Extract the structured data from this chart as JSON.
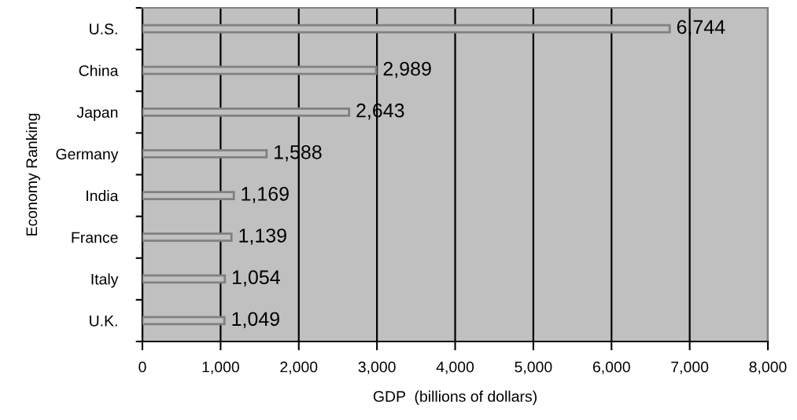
{
  "chart_data": {
    "type": "bar",
    "orientation": "horizontal",
    "ylabel": "Economy Ranking",
    "xlabel": "GDP  (billions of dollars)",
    "categories": [
      "U.S.",
      "China",
      "Japan",
      "Germany",
      "India",
      "France",
      "Italy",
      "U.K."
    ],
    "values": [
      6744,
      2989,
      2643,
      1588,
      1169,
      1139,
      1054,
      1049
    ],
    "value_labels": [
      "6,744",
      "2,989",
      "2,643",
      "1,588",
      "1,169",
      "1,139",
      "1,054",
      "1,049"
    ],
    "color": "#c0c0c0",
    "xlim": [
      0,
      8000
    ],
    "xticks": [
      {
        "value": 0,
        "label": "0"
      },
      {
        "value": 1000,
        "label": "1,000"
      },
      {
        "value": 2000,
        "label": "2,000"
      },
      {
        "value": 3000,
        "label": "3,000"
      },
      {
        "value": 4000,
        "label": "4,000"
      },
      {
        "value": 5000,
        "label": "5,000"
      },
      {
        "value": 6000,
        "label": "6,000"
      },
      {
        "value": 7000,
        "label": "7,000"
      },
      {
        "value": 8000,
        "label": "8,000"
      }
    ],
    "grid": "x",
    "legend": false
  }
}
